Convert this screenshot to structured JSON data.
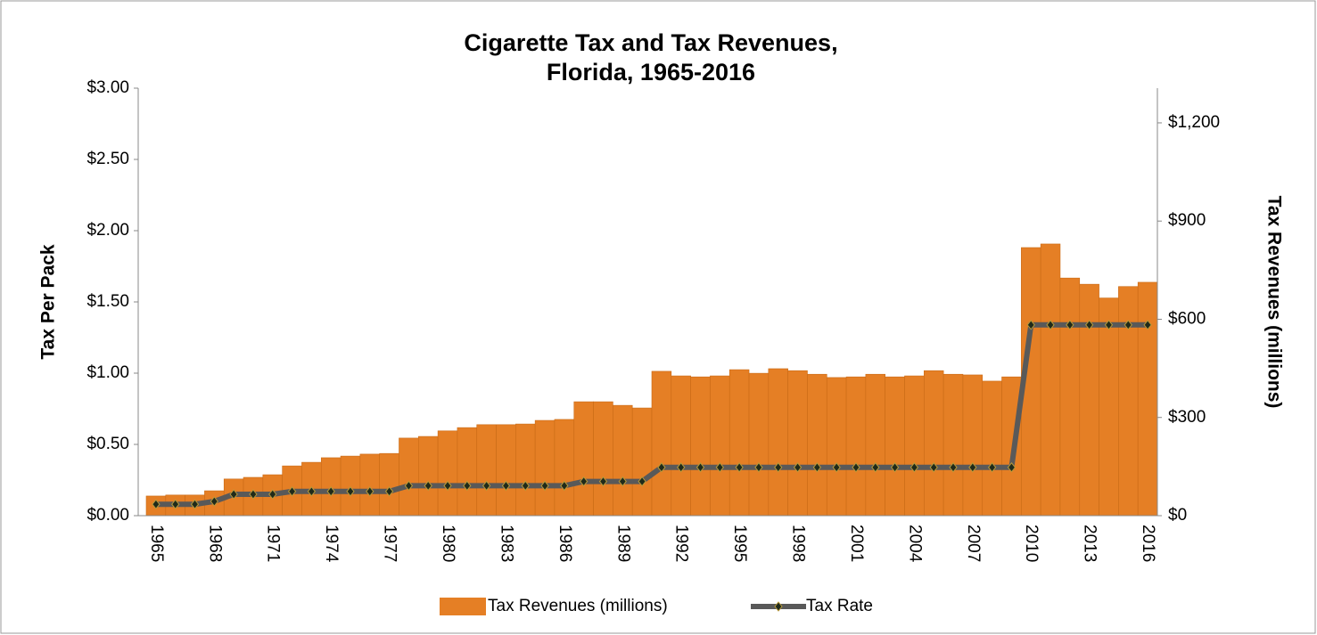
{
  "chart_data": {
    "type": "combo",
    "title": "Cigarette Tax and Tax Revenues,",
    "subtitle": "Florida, 1965-2016",
    "y_label": "Tax Per Pack",
    "y2_label": "Tax Revenues (millions)",
    "categories": [
      "1965",
      null,
      null,
      "1968",
      null,
      null,
      "1971",
      null,
      null,
      "1974",
      null,
      null,
      "1977",
      null,
      null,
      "1980",
      null,
      null,
      "1983",
      null,
      null,
      "1986",
      null,
      null,
      "1989",
      null,
      null,
      "1992",
      null,
      null,
      "1995",
      null,
      null,
      "1998",
      null,
      null,
      "2001",
      null,
      null,
      "2004",
      null,
      null,
      "2007",
      null,
      null,
      "2010",
      null,
      null,
      "2013",
      null,
      null,
      "2016"
    ],
    "series": [
      {
        "name": "Tax Revenues (millions)",
        "type": "bar",
        "axis": "y2",
        "color": "#e57f25",
        "values": [
          60,
          63,
          63,
          76,
          112,
          117,
          125,
          152,
          163,
          177,
          182,
          188,
          190,
          237,
          242,
          259,
          269,
          278,
          278,
          280,
          291,
          294,
          348,
          348,
          337,
          329,
          441,
          427,
          424,
          427,
          446,
          435,
          449,
          443,
          432,
          422,
          424,
          432,
          424,
          427,
          443,
          432,
          430,
          411,
          424,
          819,
          830,
          726,
          707,
          665,
          700,
          713
        ]
      },
      {
        "name": "Tax Rate",
        "type": "line",
        "color": "#595959",
        "values": [
          0.08,
          0.08,
          0.08,
          0.1,
          0.15,
          0.15,
          0.15,
          0.17,
          0.17,
          0.17,
          0.17,
          0.17,
          0.17,
          0.21,
          0.21,
          0.21,
          0.21,
          0.21,
          0.21,
          0.21,
          0.21,
          0.21,
          0.24,
          0.24,
          0.24,
          0.24,
          0.339,
          0.339,
          0.339,
          0.339,
          0.339,
          0.339,
          0.339,
          0.339,
          0.339,
          0.339,
          0.339,
          0.339,
          0.339,
          0.339,
          0.339,
          0.339,
          0.339,
          0.339,
          0.339,
          1.339,
          1.339,
          1.339,
          1.339,
          1.339,
          1.339,
          1.339
        ]
      }
    ],
    "ylim": [
      0,
      3
    ],
    "yticks": [
      {
        "value": 0,
        "label": "$0.00"
      },
      {
        "value": 0.5,
        "label": "$0.50"
      },
      {
        "value": 1,
        "label": "$1.00"
      },
      {
        "value": 1.5,
        "label": "$1.50"
      },
      {
        "value": 2,
        "label": "$2.00"
      },
      {
        "value": 2.5,
        "label": "$2.50"
      },
      {
        "value": 3,
        "label": "$3.00"
      }
    ],
    "y2lim": [
      0,
      1306
    ],
    "y2ticks": [
      {
        "value": 0,
        "label": "$0"
      },
      {
        "value": 300,
        "label": "$300"
      },
      {
        "value": 600,
        "label": "$600"
      },
      {
        "value": 900,
        "label": "$900"
      },
      {
        "value": 1200,
        "label": "$1,200"
      }
    ],
    "grid": false,
    "legend": "bottom"
  }
}
